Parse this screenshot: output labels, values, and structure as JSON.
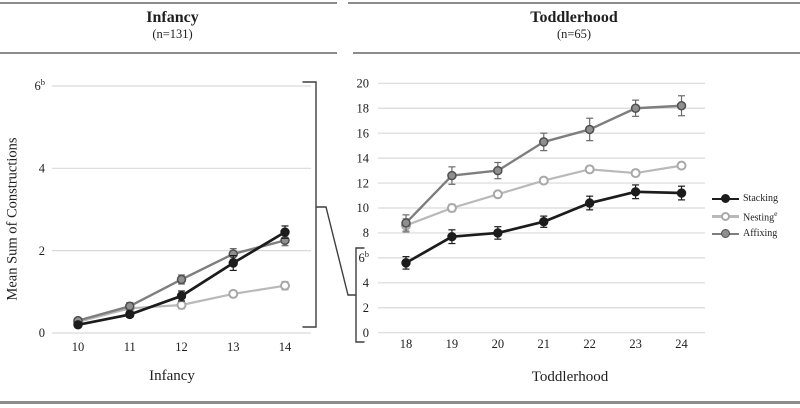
{
  "colors": {
    "stacking": "#1c1c1c",
    "nesting": "#b9b9b9",
    "nesting_marker_stroke": "#a8a8a8",
    "affixing": "#7e7e7e",
    "affixing_marker_fill": "#8f8f8f",
    "affixing_marker_stroke": "#4f4f4f",
    "grid": "#d9d9d9",
    "rule": "#8c8c8c",
    "bracket": "#3f3f3f",
    "text": "#1f1f1f"
  },
  "y_axis_label": "Mean Sum of Constructions",
  "panels": [
    {
      "title": "Infancy",
      "subtitle": "(n=131)",
      "xlabel": "Infancy"
    },
    {
      "title": "Toddlerhood",
      "subtitle": "(n=65)",
      "xlabel": "Toddlerhood"
    }
  ],
  "legend": {
    "position": "right",
    "entries": [
      {
        "label": "Stacking"
      },
      {
        "label": "Nesting",
        "sup": "e"
      },
      {
        "label": "Affixing"
      }
    ]
  },
  "chart_data": [
    {
      "type": "line",
      "title": "Infancy",
      "subtitle": "(n=131)",
      "xlabel": "Infancy",
      "ylabel": "Mean Sum of Constructions",
      "x": [
        10,
        11,
        12,
        13,
        14
      ],
      "ylim": [
        0,
        6
      ],
      "grid": true,
      "yticks": [
        {
          "v": 0,
          "label": "0"
        },
        {
          "v": 2,
          "label": "2"
        },
        {
          "v": 4,
          "label": "4"
        },
        {
          "v": 6,
          "label": "6",
          "sup": "b"
        }
      ],
      "series": [
        {
          "name": "Stacking",
          "values": [
            0.2,
            0.45,
            0.9,
            1.7,
            2.45
          ],
          "errors": [
            0.06,
            0.07,
            0.12,
            0.18,
            0.15
          ]
        },
        {
          "name": "Nesting",
          "values": [
            0.27,
            0.6,
            0.68,
            0.95,
            1.15
          ],
          "errors": [
            0.05,
            0.07,
            0.09,
            0.08,
            0.1
          ]
        },
        {
          "name": "Affixing",
          "values": [
            0.3,
            0.65,
            1.3,
            1.92,
            2.25
          ],
          "errors": [
            0.06,
            0.09,
            0.11,
            0.13,
            0.13
          ]
        }
      ]
    },
    {
      "type": "line",
      "title": "Toddlerhood",
      "subtitle": "(n=65)",
      "xlabel": "Toddlerhood",
      "x": [
        18,
        19,
        20,
        21,
        22,
        23,
        24
      ],
      "ylim": [
        0,
        20
      ],
      "grid": true,
      "legend_position": "right",
      "yticks": [
        {
          "v": 0,
          "label": "0"
        },
        {
          "v": 2,
          "label": "2"
        },
        {
          "v": 4,
          "label": "4"
        },
        {
          "v": 6,
          "label": "6",
          "sup": "b"
        },
        {
          "v": 8,
          "label": "8"
        },
        {
          "v": 10,
          "label": "10"
        },
        {
          "v": 12,
          "label": "12"
        },
        {
          "v": 14,
          "label": "14"
        },
        {
          "v": 16,
          "label": "16"
        },
        {
          "v": 18,
          "label": "18"
        },
        {
          "v": 20,
          "label": "20"
        }
      ],
      "series": [
        {
          "name": "Stacking",
          "values": [
            5.6,
            7.7,
            8.0,
            8.9,
            10.4,
            11.3,
            11.2
          ],
          "errors": [
            0.5,
            0.55,
            0.5,
            0.45,
            0.55,
            0.55,
            0.55
          ]
        },
        {
          "name": "Nesting",
          "values": [
            8.6,
            10.0,
            11.1,
            12.2,
            13.1,
            12.8,
            13.4
          ],
          "errors": [
            0.55,
            0.3,
            0.25,
            0.25,
            0.25,
            0.25,
            0.25
          ]
        },
        {
          "name": "Affixing",
          "values": [
            8.8,
            12.6,
            13.0,
            15.3,
            16.3,
            18.0,
            18.2
          ],
          "errors": [
            0.65,
            0.7,
            0.65,
            0.7,
            0.9,
            0.65,
            0.8
          ]
        }
      ]
    }
  ]
}
